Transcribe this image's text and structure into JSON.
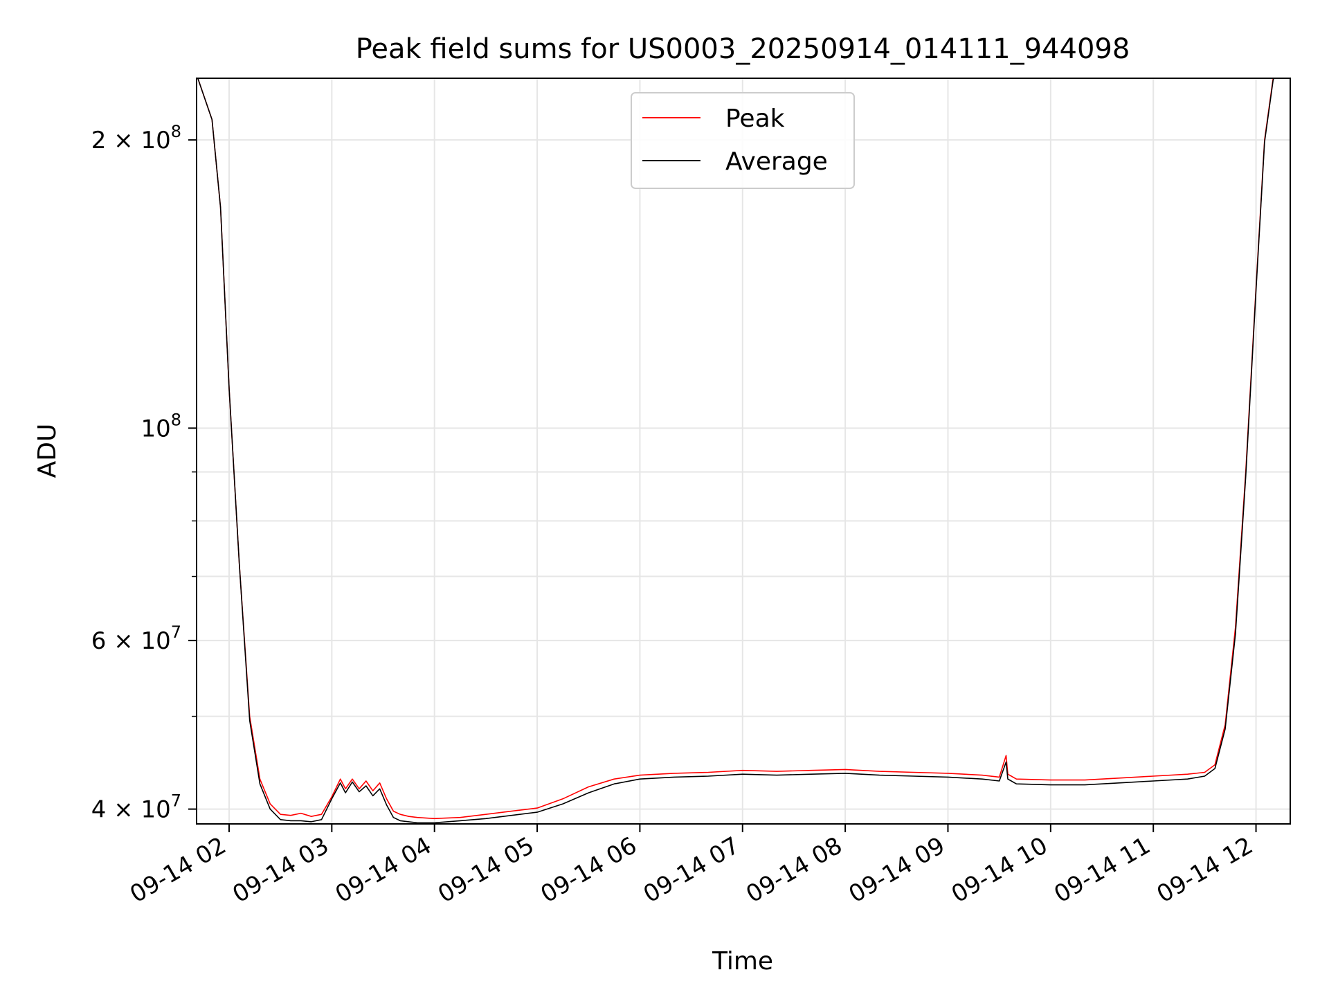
{
  "chart_data": {
    "type": "line",
    "title": "Peak field sums for US0003_20250914_014111_944098",
    "xlabel": "Time",
    "ylabel": "ADU",
    "x_scale": "time",
    "y_scale": "log",
    "xlim": [
      "2025-09-14T01:41:00",
      "2025-09-14T12:20:00"
    ],
    "ylim": [
      38600000,
      232000000
    ],
    "x_ticks": [
      {
        "value": "2025-09-14T02:00:00",
        "label": "09-14 02"
      },
      {
        "value": "2025-09-14T03:00:00",
        "label": "09-14 03"
      },
      {
        "value": "2025-09-14T04:00:00",
        "label": "09-14 04"
      },
      {
        "value": "2025-09-14T05:00:00",
        "label": "09-14 05"
      },
      {
        "value": "2025-09-14T06:00:00",
        "label": "09-14 06"
      },
      {
        "value": "2025-09-14T07:00:00",
        "label": "09-14 07"
      },
      {
        "value": "2025-09-14T08:00:00",
        "label": "09-14 08"
      },
      {
        "value": "2025-09-14T09:00:00",
        "label": "09-14 09"
      },
      {
        "value": "2025-09-14T10:00:00",
        "label": "09-14 10"
      },
      {
        "value": "2025-09-14T11:00:00",
        "label": "09-14 11"
      },
      {
        "value": "2025-09-14T12:00:00",
        "label": "09-14 12"
      }
    ],
    "y_major_ticks": [
      {
        "value": 40000000,
        "label_base": "4 × 10",
        "label_exp": "7"
      },
      {
        "value": 60000000,
        "label_base": "6 × 10",
        "label_exp": "7"
      },
      {
        "value": 100000000,
        "label_base": "10",
        "label_exp": "8"
      },
      {
        "value": 200000000,
        "label_base": "2 × 10",
        "label_exp": "8"
      }
    ],
    "y_minor_ticks": [
      50000000,
      70000000,
      80000000,
      90000000
    ],
    "grid": true,
    "legend_position": "top-center",
    "series": [
      {
        "name": "Peak",
        "color": "#ff0000",
        "x": [
          "2025-09-14T01:41:00",
          "2025-09-14T01:50:00",
          "2025-09-14T01:55:00",
          "2025-09-14T02:00:00",
          "2025-09-14T02:06:00",
          "2025-09-14T02:12:00",
          "2025-09-14T02:18:00",
          "2025-09-14T02:24:00",
          "2025-09-14T02:30:00",
          "2025-09-14T02:36:00",
          "2025-09-14T02:42:00",
          "2025-09-14T02:48:00",
          "2025-09-14T02:54:00",
          "2025-09-14T03:00:00",
          "2025-09-14T03:05:00",
          "2025-09-14T03:08:00",
          "2025-09-14T03:12:00",
          "2025-09-14T03:16:00",
          "2025-09-14T03:20:00",
          "2025-09-14T03:24:00",
          "2025-09-14T03:28:00",
          "2025-09-14T03:32:00",
          "2025-09-14T03:36:00",
          "2025-09-14T03:40:00",
          "2025-09-14T03:45:00",
          "2025-09-14T03:50:00",
          "2025-09-14T04:00:00",
          "2025-09-14T04:15:00",
          "2025-09-14T04:30:00",
          "2025-09-14T04:45:00",
          "2025-09-14T05:00:00",
          "2025-09-14T05:15:00",
          "2025-09-14T05:30:00",
          "2025-09-14T05:45:00",
          "2025-09-14T06:00:00",
          "2025-09-14T06:20:00",
          "2025-09-14T06:40:00",
          "2025-09-14T07:00:00",
          "2025-09-14T07:20:00",
          "2025-09-14T07:40:00",
          "2025-09-14T08:00:00",
          "2025-09-14T08:20:00",
          "2025-09-14T08:40:00",
          "2025-09-14T09:00:00",
          "2025-09-14T09:20:00",
          "2025-09-14T09:30:00",
          "2025-09-14T09:34:00",
          "2025-09-14T09:35:00",
          "2025-09-14T09:37:00",
          "2025-09-14T09:40:00",
          "2025-09-14T10:00:00",
          "2025-09-14T10:20:00",
          "2025-09-14T10:40:00",
          "2025-09-14T11:00:00",
          "2025-09-14T11:20:00",
          "2025-09-14T11:30:00",
          "2025-09-14T11:36:00",
          "2025-09-14T11:42:00",
          "2025-09-14T11:48:00",
          "2025-09-14T11:54:00",
          "2025-09-14T12:00:00",
          "2025-09-14T12:05:00",
          "2025-09-14T12:10:00",
          "2025-09-14T12:13:00"
        ],
        "values": [
          234000000,
          210000000,
          170000000,
          110000000,
          72000000,
          50000000,
          43000000,
          40500000,
          39500000,
          39400000,
          39600000,
          39300000,
          39500000,
          41200000,
          43000000,
          42000000,
          43000000,
          42000000,
          42800000,
          41800000,
          42600000,
          41000000,
          39800000,
          39500000,
          39300000,
          39200000,
          39100000,
          39200000,
          39500000,
          39800000,
          40100000,
          41000000,
          42200000,
          43000000,
          43400000,
          43600000,
          43700000,
          43900000,
          43800000,
          43900000,
          44000000,
          43800000,
          43700000,
          43600000,
          43400000,
          43200000,
          45500000,
          43500000,
          43300000,
          43000000,
          42900000,
          42900000,
          43100000,
          43300000,
          43500000,
          43700000,
          44500000,
          49000000,
          62000000,
          90000000,
          140000000,
          200000000,
          232000000,
          240000000
        ]
      },
      {
        "name": "Average",
        "color": "#000000",
        "x": [
          "2025-09-14T01:41:00",
          "2025-09-14T01:50:00",
          "2025-09-14T01:55:00",
          "2025-09-14T02:00:00",
          "2025-09-14T02:06:00",
          "2025-09-14T02:12:00",
          "2025-09-14T02:18:00",
          "2025-09-14T02:24:00",
          "2025-09-14T02:30:00",
          "2025-09-14T02:36:00",
          "2025-09-14T02:42:00",
          "2025-09-14T02:48:00",
          "2025-09-14T02:54:00",
          "2025-09-14T03:00:00",
          "2025-09-14T03:05:00",
          "2025-09-14T03:08:00",
          "2025-09-14T03:12:00",
          "2025-09-14T03:16:00",
          "2025-09-14T03:20:00",
          "2025-09-14T03:24:00",
          "2025-09-14T03:28:00",
          "2025-09-14T03:32:00",
          "2025-09-14T03:36:00",
          "2025-09-14T03:40:00",
          "2025-09-14T03:45:00",
          "2025-09-14T03:50:00",
          "2025-09-14T04:00:00",
          "2025-09-14T04:15:00",
          "2025-09-14T04:30:00",
          "2025-09-14T04:45:00",
          "2025-09-14T05:00:00",
          "2025-09-14T05:15:00",
          "2025-09-14T05:30:00",
          "2025-09-14T05:45:00",
          "2025-09-14T06:00:00",
          "2025-09-14T06:20:00",
          "2025-09-14T06:40:00",
          "2025-09-14T07:00:00",
          "2025-09-14T07:20:00",
          "2025-09-14T07:40:00",
          "2025-09-14T08:00:00",
          "2025-09-14T08:20:00",
          "2025-09-14T08:40:00",
          "2025-09-14T09:00:00",
          "2025-09-14T09:20:00",
          "2025-09-14T09:30:00",
          "2025-09-14T09:34:00",
          "2025-09-14T09:35:00",
          "2025-09-14T09:37:00",
          "2025-09-14T09:40:00",
          "2025-09-14T10:00:00",
          "2025-09-14T10:20:00",
          "2025-09-14T10:40:00",
          "2025-09-14T11:00:00",
          "2025-09-14T11:20:00",
          "2025-09-14T11:30:00",
          "2025-09-14T11:36:00",
          "2025-09-14T11:42:00",
          "2025-09-14T11:48:00",
          "2025-09-14T11:54:00",
          "2025-09-14T12:00:00",
          "2025-09-14T12:05:00",
          "2025-09-14T12:10:00",
          "2025-09-14T12:13:00"
        ],
        "values": [
          234000000,
          210000000,
          170000000,
          110000000,
          72000000,
          49500000,
          42500000,
          40000000,
          39000000,
          38900000,
          38900000,
          38800000,
          39000000,
          41000000,
          42600000,
          41600000,
          42700000,
          41700000,
          42300000,
          41300000,
          42000000,
          40400000,
          39200000,
          38900000,
          38800000,
          38700000,
          38700000,
          38900000,
          39100000,
          39400000,
          39700000,
          40500000,
          41600000,
          42500000,
          43000000,
          43200000,
          43300000,
          43500000,
          43400000,
          43500000,
          43600000,
          43400000,
          43300000,
          43200000,
          43000000,
          42800000,
          44800000,
          43000000,
          42800000,
          42500000,
          42400000,
          42400000,
          42600000,
          42800000,
          43000000,
          43300000,
          44100000,
          48500000,
          61000000,
          89000000,
          139000000,
          199000000,
          231000000,
          239000000
        ]
      }
    ]
  }
}
